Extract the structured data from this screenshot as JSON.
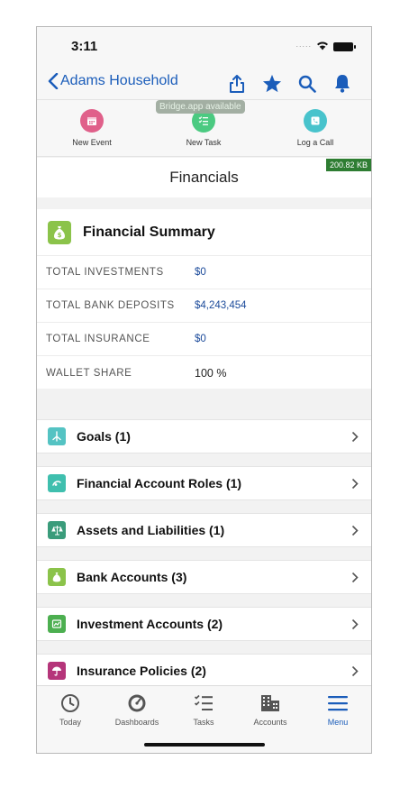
{
  "status": {
    "time": "3:11",
    "signal": "....."
  },
  "nav": {
    "back_label": "Adams Household",
    "icons": [
      "share-icon",
      "star-icon",
      "search-icon",
      "bell-icon"
    ],
    "accent": "#1b5dba"
  },
  "toast": "Bridge.app available",
  "quick_actions": [
    {
      "label": "New Event",
      "icon": "calendar-icon",
      "color": "#e0608a"
    },
    {
      "label": "New Task",
      "icon": "task-icon",
      "color": "#4bca81"
    },
    {
      "label": "Log a Call",
      "icon": "phone-icon",
      "color": "#48c3cc"
    }
  ],
  "page_title": "Financials",
  "size_badge": "200.82 KB",
  "summary": {
    "title": "Financial Summary",
    "rows": [
      {
        "label": "TOTAL INVESTMENTS",
        "value": "$0"
      },
      {
        "label": "TOTAL BANK DEPOSITS",
        "value": "$4,243,454"
      },
      {
        "label": "TOTAL INSURANCE",
        "value": "$0"
      },
      {
        "label": "WALLET SHARE",
        "value": "100 %"
      }
    ]
  },
  "related_lists": [
    {
      "label": "Goals (1)",
      "icon": "goal-icon",
      "color": "#54c3c3"
    },
    {
      "label": "Financial Account Roles (1)",
      "icon": "account-role-icon",
      "color": "#3fbfae"
    },
    {
      "label": "Assets and Liabilities (1)",
      "icon": "scale-icon",
      "color": "#3a9c7b"
    },
    {
      "label": "Bank Accounts (3)",
      "icon": "bank-account-icon",
      "color": "#8bc34a"
    },
    {
      "label": "Investment Accounts (2)",
      "icon": "investment-icon",
      "color": "#4caf50"
    },
    {
      "label": "Insurance Policies (2)",
      "icon": "umbrella-icon",
      "color": "#b5357a"
    }
  ],
  "tabs": [
    {
      "label": "Today",
      "icon": "clock-icon"
    },
    {
      "label": "Dashboards",
      "icon": "gauge-icon"
    },
    {
      "label": "Tasks",
      "icon": "tasks-icon"
    },
    {
      "label": "Accounts",
      "icon": "building-icon"
    },
    {
      "label": "Menu",
      "icon": "menu-icon",
      "active": true
    }
  ]
}
